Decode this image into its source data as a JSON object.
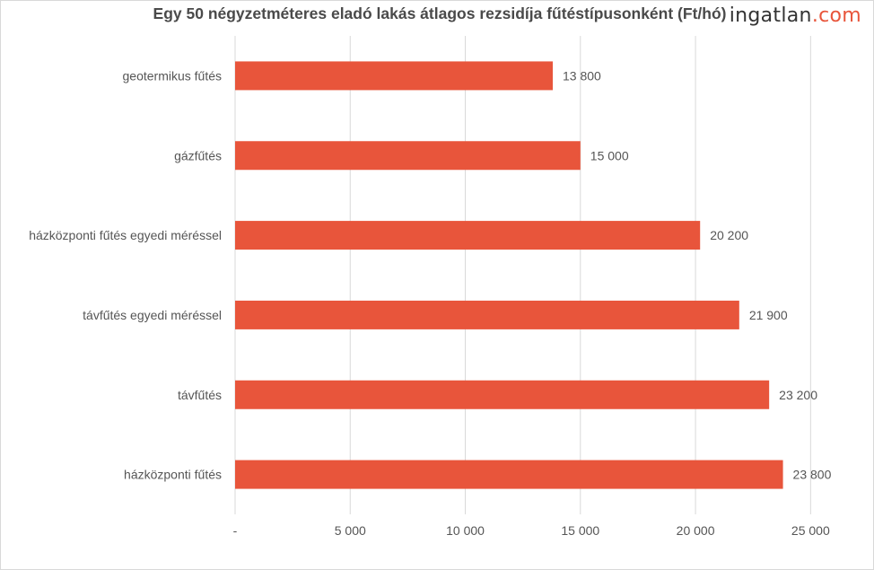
{
  "logo": {
    "main": "ingatlan",
    "tld": ".com"
  },
  "chart_data": {
    "type": "bar",
    "orientation": "horizontal",
    "title": "Egy 50 négyzetméteres eladó lakás átlagos rezsidíja fűtéstípusonként (Ft/hó)",
    "categories": [
      "geotermikus fűtés",
      "gázfűtés",
      "házközponti fűtés egyedi méréssel",
      "távfűtés egyedi méréssel",
      "távfűtés",
      "házközponti fűtés"
    ],
    "values": [
      13800,
      15000,
      20200,
      21900,
      23200,
      23800
    ],
    "value_labels": [
      "13 800",
      "15 000",
      "20 200",
      "21 900",
      "23 200",
      "23 800"
    ],
    "xlim": [
      0,
      26000
    ],
    "xticks": [
      0,
      5000,
      10000,
      15000,
      20000,
      25000
    ],
    "xtick_labels": [
      "-",
      "5 000",
      "10 000",
      "15 000",
      "20 000",
      "25 000"
    ],
    "xlabel": "",
    "ylabel": "",
    "grid": "vertical",
    "legend": "none",
    "bar_color": "#e8553b",
    "grid_color": "#d9d9d9"
  }
}
